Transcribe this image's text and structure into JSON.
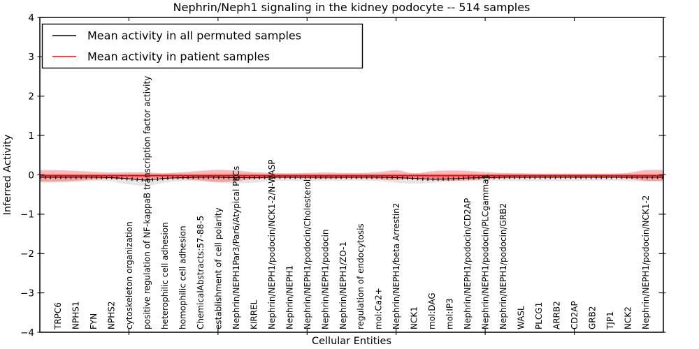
{
  "title": "Nephrin/Neph1 signaling in the kidney podocyte -- 514 samples",
  "axes": {
    "xlabel": "Cellular Entities",
    "ylabel": "Inferred Activity",
    "ylim": [
      -4,
      4
    ],
    "yticks": [
      -4,
      -3,
      -2,
      -1,
      0,
      1,
      2,
      3,
      4
    ],
    "xlim": [
      -1,
      34
    ],
    "xticks": [
      4,
      9,
      14,
      19,
      24,
      29
    ]
  },
  "legend": {
    "entries": [
      {
        "label": "Mean activity in all permuted samples",
        "color": "#000000"
      },
      {
        "label": "Mean activity in patient samples",
        "color": "#ff0000"
      }
    ]
  },
  "chart_data": {
    "type": "line",
    "title": "Nephrin/Neph1 signaling in the kidney podocyte -- 514 samples",
    "xlabel": "Cellular Entities",
    "ylabel": "Inferred Activity",
    "ylim": [
      -4,
      4
    ],
    "xlim": [
      -1,
      34
    ],
    "grid": false,
    "legend_position": "upper left",
    "categories": [
      "TRPC6",
      "NPHS1",
      "FYN",
      "NPHS2",
      "cytoskeleton organization",
      "positive regulation of NF-kappaB transcription factor activity",
      "heterophilic cell adhesion",
      "homophilic cell adhesion",
      "ChemicalAbstracts:57-88-5",
      "establishment of cell polarity",
      "Nephrin/NEPH1Par3/Par6/Atypical PKCs",
      "KIRREL",
      "Nephrin/NEPH1/podocin/NCK1-2/N-WASP",
      "Nephrin/NEPH1",
      "Nephrin/NEPH1/podocin/Cholesterol",
      "Nephrin/NEPH1/podocin",
      "Nephrin/NEPH1/ZO-1",
      "regulation of endocytosis",
      "mol:Ca2+",
      "Nephrin/NEPH1/beta Arrestin2",
      "NCK1",
      "mol:DAG",
      "mol:IP3",
      "Nephrin/NEPH1/podocin/CD2AP",
      "Nephrin/NEPH1/podocin/PLCgamma1",
      "Nephrin/NEPH1/podocin/GRB2",
      "WASL",
      "PLCG1",
      "ARRB2",
      "CD2AP",
      "GRB2",
      "TJP1",
      "NCK2",
      "Nephrin/NEPH1/podocin/NCK1-2"
    ],
    "series": [
      {
        "name": "Mean activity in all permuted samples",
        "color": "#000000",
        "style": "solid-with-tick-markers",
        "values": [
          -0.06,
          -0.06,
          -0.06,
          -0.07,
          -0.1,
          -0.13,
          -0.09,
          -0.07,
          -0.06,
          -0.06,
          -0.07,
          -0.07,
          -0.06,
          -0.06,
          -0.06,
          -0.06,
          -0.06,
          -0.06,
          -0.06,
          -0.07,
          -0.09,
          -0.11,
          -0.1,
          -0.08,
          -0.07,
          -0.06,
          -0.06,
          -0.06,
          -0.06,
          -0.06,
          -0.06,
          -0.06,
          -0.06,
          -0.06
        ]
      },
      {
        "name": "Mean activity in patient samples",
        "color": "#ff0000",
        "style": "solid",
        "values": [
          -0.02,
          -0.02,
          -0.02,
          -0.02,
          -0.02,
          -0.02,
          -0.02,
          -0.02,
          -0.02,
          -0.02,
          -0.02,
          -0.02,
          -0.02,
          -0.02,
          -0.02,
          -0.02,
          -0.02,
          -0.02,
          -0.02,
          -0.02,
          -0.02,
          -0.02,
          -0.02,
          -0.02,
          -0.02,
          -0.02,
          -0.02,
          -0.02,
          -0.02,
          -0.02,
          -0.02,
          -0.02,
          -0.02,
          -0.02
        ]
      }
    ],
    "bands": [
      {
        "name": "permuted-samples-range",
        "color": "rgba(0,0,0,0.10)",
        "upper": [
          0.03,
          0.02,
          0.02,
          0.02,
          0.03,
          0.03,
          0.03,
          0.03,
          0.03,
          0.04,
          0.04,
          0.03,
          0.02,
          0.02,
          0.02,
          0.02,
          0.02,
          0.02,
          0.03,
          0.04,
          0.03,
          0.03,
          0.03,
          0.03,
          0.02,
          0.02,
          0.02,
          0.02,
          0.02,
          0.02,
          0.02,
          0.02,
          0.02,
          0.03
        ],
        "lower": [
          -0.2,
          -0.18,
          -0.16,
          -0.17,
          -0.24,
          -0.28,
          -0.2,
          -0.16,
          -0.17,
          -0.2,
          -0.22,
          -0.2,
          -0.16,
          -0.15,
          -0.16,
          -0.16,
          -0.15,
          -0.15,
          -0.16,
          -0.2,
          -0.22,
          -0.2,
          -0.17,
          -0.16,
          -0.15,
          -0.15,
          -0.16,
          -0.16,
          -0.16,
          -0.16,
          -0.15,
          -0.15,
          -0.16,
          -0.17
        ]
      },
      {
        "name": "patient-samples-range",
        "color": "rgba(255,0,0,0.28)",
        "upper": [
          0.12,
          0.1,
          0.08,
          0.06,
          0.07,
          0.06,
          0.04,
          0.07,
          0.1,
          0.13,
          0.11,
          0.07,
          0.05,
          0.04,
          0.05,
          0.06,
          0.05,
          0.05,
          0.07,
          0.12,
          0.04,
          0.09,
          0.11,
          0.1,
          0.07,
          0.05,
          0.04,
          0.03,
          0.03,
          0.03,
          0.03,
          0.03,
          0.05,
          0.12
        ],
        "lower": [
          -0.17,
          -0.15,
          -0.12,
          -0.1,
          -0.11,
          -0.1,
          -0.08,
          -0.11,
          -0.14,
          -0.18,
          -0.16,
          -0.11,
          -0.09,
          -0.08,
          -0.09,
          -0.1,
          -0.09,
          -0.09,
          -0.11,
          -0.13,
          -0.08,
          -0.13,
          -0.15,
          -0.14,
          -0.11,
          -0.09,
          -0.08,
          -0.07,
          -0.07,
          -0.07,
          -0.07,
          -0.07,
          -0.09,
          -0.15
        ]
      },
      {
        "name": "patient-samples-core",
        "color": "rgba(255,0,0,0.22)",
        "upper": [
          0.01,
          0.01,
          0.01,
          0.01,
          0.01,
          0.01,
          0.01,
          0.01,
          0.01,
          0.01,
          0.01,
          0.01,
          0.01,
          0.01,
          0.01,
          0.01,
          0.01,
          0.01,
          0.01,
          0.01,
          0.01,
          0.01,
          0.01,
          0.01,
          0.01,
          0.01,
          0.01,
          0.01,
          0.01,
          0.01,
          0.01,
          0.01,
          0.01,
          0.01
        ],
        "lower": [
          -0.07,
          -0.07,
          -0.07,
          -0.07,
          -0.07,
          -0.07,
          -0.07,
          -0.07,
          -0.07,
          -0.07,
          -0.07,
          -0.07,
          -0.07,
          -0.07,
          -0.07,
          -0.07,
          -0.07,
          -0.07,
          -0.07,
          -0.07,
          -0.07,
          -0.07,
          -0.07,
          -0.07,
          -0.07,
          -0.07,
          -0.07,
          -0.07,
          -0.07,
          -0.07,
          -0.07,
          -0.07,
          -0.07,
          -0.07
        ]
      }
    ]
  }
}
